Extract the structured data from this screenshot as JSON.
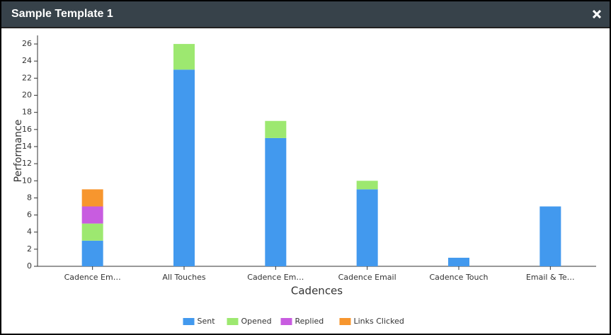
{
  "header": {
    "title": "Sample Template 1"
  },
  "chart_data": {
    "type": "stacked_bar",
    "x_label": "Cadences",
    "y_label": "Performance",
    "categories": [
      "Cadence Em…",
      "All Touches",
      "Cadence Em…",
      "Cadence Email",
      "Cadence Touch",
      "Email & Te…"
    ],
    "series": [
      {
        "name": "Sent",
        "color": "#4299ee",
        "values": [
          3,
          23,
          15,
          9,
          1,
          7
        ]
      },
      {
        "name": "Opened",
        "color": "#9de870",
        "values": [
          2,
          3,
          2,
          1,
          0,
          0
        ]
      },
      {
        "name": "Replied",
        "color": "#c85ce0",
        "values": [
          2,
          0,
          0,
          0,
          0,
          0
        ]
      },
      {
        "name": "Links Clicked",
        "color": "#f7962e",
        "values": [
          2,
          0,
          0,
          0,
          0,
          0
        ]
      }
    ],
    "ylim": [
      0,
      27
    ],
    "yticks": [
      0,
      2,
      4,
      6,
      8,
      10,
      12,
      14,
      16,
      18,
      20,
      22,
      24,
      26
    ]
  }
}
